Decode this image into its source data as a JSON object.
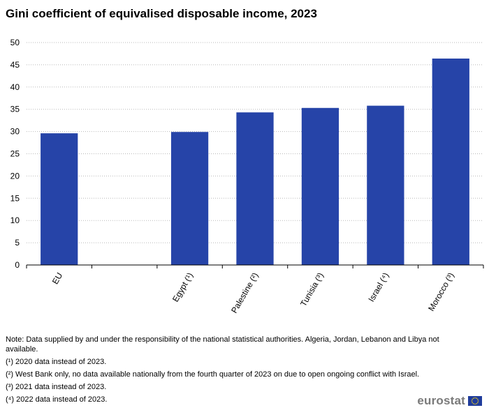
{
  "chart_data": {
    "type": "bar",
    "title": "Gini coefficient of equivalised disposable income, 2023",
    "categories": [
      "EU",
      "",
      "Egypt (¹)",
      "Palestine (²)",
      "Tunisia (³)",
      "Israel (⁴)",
      "Morocco (³)"
    ],
    "values": [
      29.6,
      null,
      29.9,
      34.3,
      35.3,
      35.8,
      46.4
    ],
    "ylim": [
      0,
      50
    ],
    "yticks": [
      0,
      5,
      10,
      15,
      20,
      25,
      30,
      35,
      40,
      45,
      50
    ],
    "grid": true,
    "bar_color": "#2644a8"
  },
  "notes": [
    "Note: Data supplied by and under the responsibility of the national statistical authorities. Algeria, Jordan, Lebanon and Libya not available.",
    "(¹) 2020 data instead of 2023.",
    "(²) West Bank only, no data available nationally from the fourth quarter of 2023 on due to open ongoing conflict with Israel.",
    "(³) 2021 data instead of 2023.",
    "(⁴) 2022 data instead of 2023."
  ],
  "logo": {
    "text": "eurostat",
    "flag_icon": "eu-flag-icon"
  }
}
